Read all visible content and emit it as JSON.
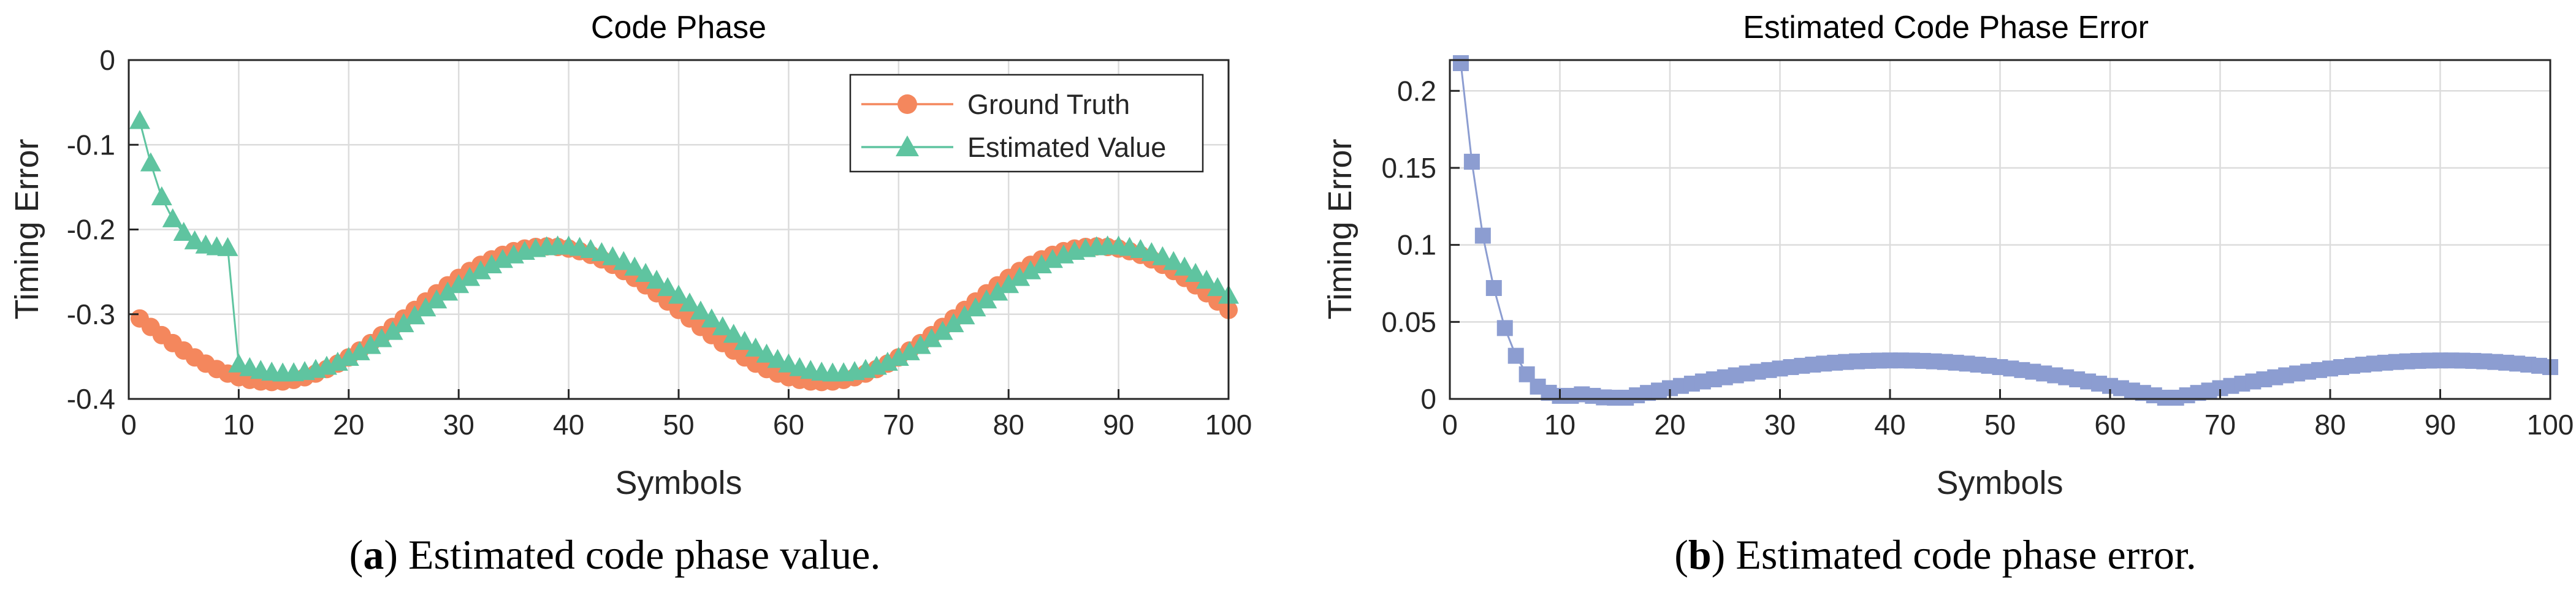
{
  "chart_data": [
    {
      "id": "a",
      "type": "line",
      "title": "Code Phase",
      "xlabel": "Symbols",
      "ylabel": "Timing Error",
      "xlim": [
        0,
        100
      ],
      "ylim": [
        -0.4,
        0
      ],
      "xticks": [
        "0",
        "10",
        "20",
        "30",
        "40",
        "50",
        "60",
        "70",
        "80",
        "90",
        "100"
      ],
      "yticks": [
        "0",
        "-0.1",
        "-0.2",
        "-0.3",
        "-0.4"
      ],
      "grid": true,
      "legend_position": "top-right",
      "series": [
        {
          "name": "Ground Truth",
          "color": "#f4875d",
          "marker": "circle",
          "x": [
            1,
            100
          ],
          "model": {
            "kind": "sine",
            "mean": -0.3,
            "amplitude": 0.08,
            "period": 50,
            "phase_x": 0.5
          }
        },
        {
          "name": "Estimated Value",
          "color": "#5fc4a0",
          "marker": "triangle",
          "x": [
            1,
            100
          ],
          "points": [
            [
              1,
              -0.072
            ],
            [
              2,
              -0.122
            ],
            [
              3,
              -0.162
            ],
            [
              4,
              -0.188
            ],
            [
              5,
              -0.204
            ],
            [
              6,
              -0.214
            ],
            [
              7,
              -0.219
            ],
            [
              8,
              -0.221
            ],
            [
              9,
              -0.222
            ]
          ],
          "model": {
            "kind": "sine",
            "mean": -0.295,
            "amplitude": 0.075,
            "period": 50,
            "phase_x": 1.8
          }
        }
      ]
    },
    {
      "id": "b",
      "type": "line",
      "title": "Estimated Code Phase Error",
      "xlabel": "Symbols",
      "ylabel": "Timing Error",
      "xlim": [
        0,
        100
      ],
      "ylim": [
        0,
        0.22
      ],
      "xticks": [
        "0",
        "10",
        "20",
        "30",
        "40",
        "50",
        "60",
        "70",
        "80",
        "90",
        "100"
      ],
      "yticks": [
        "0",
        "0.05",
        "0.1",
        "0.15",
        "0.2"
      ],
      "grid": true,
      "series": [
        {
          "name": "Estimated Code Phase Error",
          "color": "#8c9dd1",
          "marker": "square",
          "x": [
            1,
            100
          ],
          "points": [
            [
              1,
              0.218
            ],
            [
              2,
              0.154
            ],
            [
              3,
              0.106
            ],
            [
              4,
              0.072
            ],
            [
              5,
              0.046
            ],
            [
              6,
              0.028
            ],
            [
              7,
              0.016
            ],
            [
              8,
              0.008
            ],
            [
              9,
              0.004
            ],
            [
              10,
              0.002
            ],
            [
              11,
              0.002
            ],
            [
              12,
              0.003
            ],
            [
              13,
              0.002
            ],
            [
              14,
              0.001
            ]
          ],
          "model": {
            "kind": "abs_sine",
            "amplitude": 0.025,
            "period": 50,
            "zero_x": 15.5
          }
        }
      ]
    }
  ],
  "captions": [
    {
      "letter": "a",
      "text": ") Estimated code phase value."
    },
    {
      "letter": "b",
      "text": ") Estimated code phase error."
    }
  ]
}
